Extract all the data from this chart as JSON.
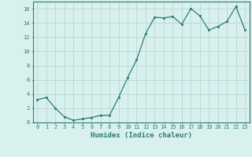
{
  "x": [
    0,
    1,
    2,
    3,
    4,
    5,
    6,
    7,
    8,
    9,
    10,
    11,
    12,
    13,
    14,
    15,
    16,
    17,
    18,
    19,
    20,
    21,
    22,
    23
  ],
  "y": [
    3.2,
    3.5,
    2.0,
    0.8,
    0.3,
    0.5,
    0.7,
    1.0,
    1.0,
    3.5,
    6.3,
    8.8,
    12.5,
    14.8,
    14.7,
    14.9,
    13.8,
    16.0,
    15.0,
    13.0,
    13.5,
    14.2,
    16.3,
    13.0
  ],
  "line_color": "#2d7d6e",
  "marker": "s",
  "marker_size": 2.0,
  "bg_color": "#d8f0ee",
  "grid_color": "#b8d8d4",
  "xlabel": "Humidex (Indice chaleur)",
  "ylim": [
    0,
    17
  ],
  "xlim": [
    -0.5,
    23.5
  ],
  "yticks": [
    0,
    2,
    4,
    6,
    8,
    10,
    12,
    14,
    16
  ],
  "xticks": [
    0,
    1,
    2,
    3,
    4,
    5,
    6,
    7,
    8,
    9,
    10,
    11,
    12,
    13,
    14,
    15,
    16,
    17,
    18,
    19,
    20,
    21,
    22,
    23
  ],
  "tick_fontsize": 5.0,
  "xlabel_fontsize": 6.5,
  "linewidth": 0.9
}
